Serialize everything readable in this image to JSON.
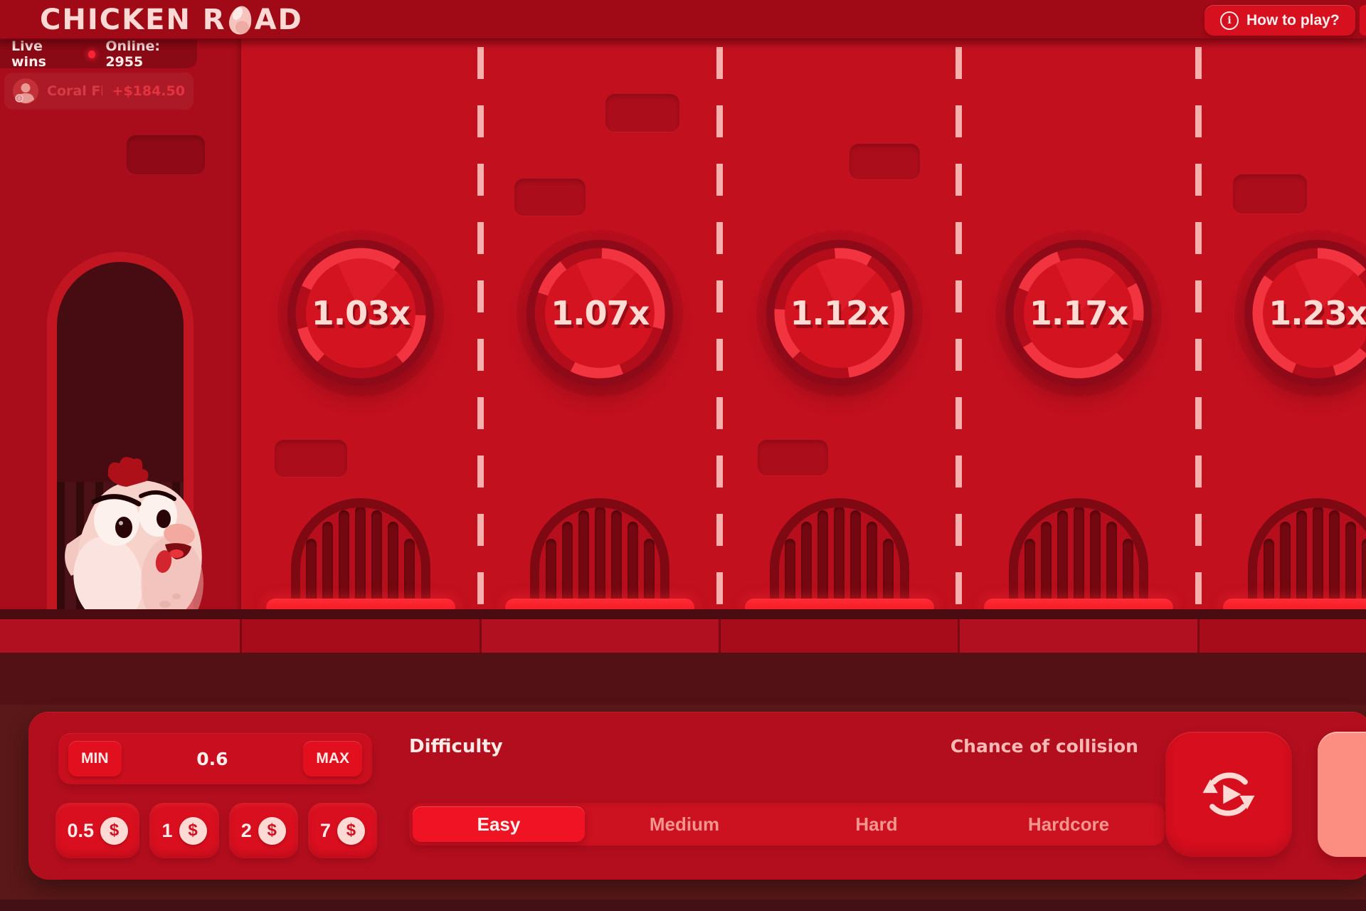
{
  "app": {
    "logo_left": "CHICKEN R",
    "logo_right": "AD",
    "how_to_play_label": "How to play?"
  },
  "live_wins": {
    "title": "Live wins",
    "online": "Online: 2955",
    "entry": {
      "name": "Coral Financia...",
      "amount": "+$184.50"
    }
  },
  "game": {
    "multipliers": [
      "1.03x",
      "1.07x",
      "1.12x",
      "1.17x",
      "1.23x"
    ]
  },
  "controls": {
    "min_label": "MIN",
    "max_label": "MAX",
    "bet_value": "0.6",
    "currency_symbol": "$",
    "quick_bets": [
      "0.5",
      "1",
      "2",
      "7"
    ],
    "difficulty_label": "Difficulty",
    "chance_label": "Chance of collision",
    "difficulties": [
      "Easy",
      "Medium",
      "Hard",
      "Hardcore"
    ],
    "selected_difficulty": "Easy"
  },
  "colors": {
    "road": "#c2101f",
    "wall": "#a90d1b",
    "accent_bright": "#f01323",
    "platform_glow": "#ff2c34",
    "pink_text": "#ffdbd4",
    "dash": "#f6b1ac",
    "salmon_button": "#fb8e80",
    "panel": "#b30e1e"
  }
}
